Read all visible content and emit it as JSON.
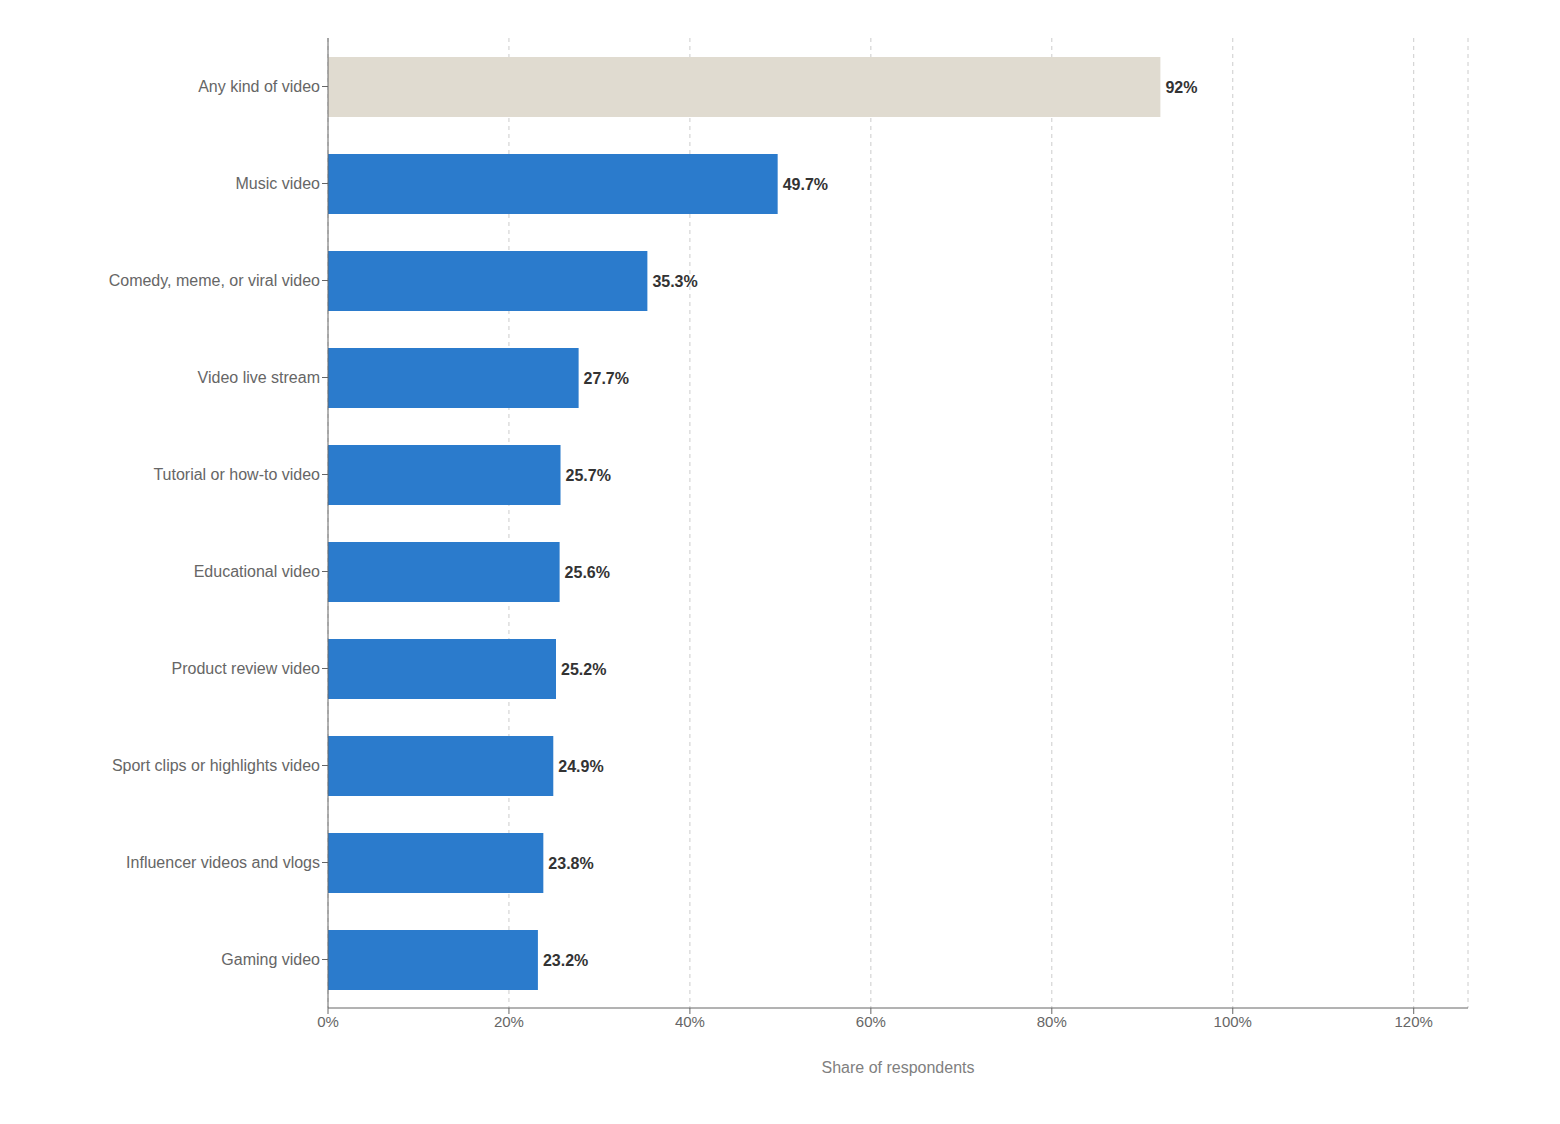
{
  "chart_data": {
    "type": "bar",
    "orientation": "horizontal",
    "categories": [
      "Gaming video",
      "Influencer videos and vlogs",
      "Sport clips or highlights video",
      "Product review video",
      "Educational video",
      "Tutorial or how-to video",
      "Video live stream",
      "Comedy, meme, or viral video",
      "Music video",
      "Any kind of video"
    ],
    "values": [
      23.2,
      23.8,
      24.9,
      25.2,
      25.6,
      25.7,
      27.7,
      35.3,
      49.7,
      92.0
    ],
    "value_labels": [
      "23.2%",
      "23.8%",
      "24.9%",
      "25.2%",
      "25.6%",
      "25.7%",
      "27.7%",
      "35.3%",
      "49.7%",
      "92%"
    ],
    "data_labels": true,
    "colors": [
      "#2b7bcc",
      "#2b7bcc",
      "#2b7bcc",
      "#2b7bcc",
      "#2b7bcc",
      "#2b7bcc",
      "#2b7bcc",
      "#2b7bcc",
      "#2b7bcc",
      "#e0dbd0"
    ],
    "xlabel": "Share of respondents",
    "xlim": [
      0,
      126
    ],
    "xticks": [
      {
        "value": 0,
        "label": "0%"
      },
      {
        "value": 20,
        "label": "20%"
      },
      {
        "value": 40,
        "label": "40%"
      },
      {
        "value": 60,
        "label": "60%"
      },
      {
        "value": 80,
        "label": "80%"
      },
      {
        "value": 100,
        "label": "100%"
      },
      {
        "value": 120,
        "label": "120%"
      }
    ],
    "grid": true
  }
}
